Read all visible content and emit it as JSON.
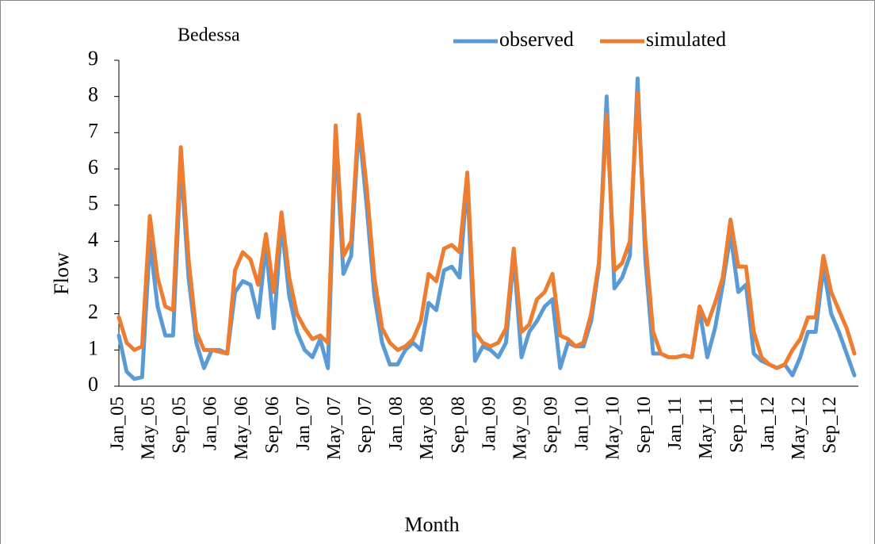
{
  "chart_data": {
    "type": "line",
    "title": "Bedessa",
    "x_label": "Month",
    "y_label": "Flow",
    "categories": [
      "Jan_05",
      null,
      null,
      null,
      "May_05",
      null,
      null,
      null,
      "Sep_05",
      null,
      null,
      null,
      "Jan_06",
      null,
      null,
      null,
      "May_06",
      null,
      null,
      null,
      "Sep_06",
      null,
      null,
      null,
      "Jan_07",
      null,
      null,
      null,
      "May_07",
      null,
      null,
      null,
      "Sep_07",
      null,
      null,
      null,
      "Jan_08",
      null,
      null,
      null,
      "May_08",
      null,
      null,
      null,
      "Sep_08",
      null,
      null,
      null,
      "Jan_09",
      null,
      null,
      null,
      "May_09",
      null,
      null,
      null,
      "Sep_09",
      null,
      null,
      null,
      "Jan_10",
      null,
      null,
      null,
      "May_10",
      null,
      null,
      null,
      "Sep_10",
      null,
      null,
      null,
      "Jan_11",
      null,
      null,
      null,
      "May_11",
      null,
      null,
      null,
      "Sep_11",
      null,
      null,
      null,
      "Jan_12",
      null,
      null,
      null,
      "May_12",
      null,
      null,
      null,
      "Sep_12",
      null,
      null,
      null
    ],
    "series": [
      {
        "name": "observed",
        "color": "#5b9bd5",
        "values": [
          1.4,
          0.4,
          0.2,
          0.25,
          4.0,
          2.2,
          1.4,
          1.4,
          6.2,
          3.0,
          1.2,
          0.5,
          1.0,
          1.0,
          0.9,
          2.6,
          2.9,
          2.8,
          1.9,
          3.9,
          1.6,
          4.5,
          2.5,
          1.5,
          1.0,
          0.8,
          1.3,
          0.5,
          6.9,
          3.1,
          3.6,
          7.2,
          5.0,
          2.5,
          1.2,
          0.6,
          0.6,
          1.0,
          1.2,
          1.0,
          2.3,
          2.1,
          3.2,
          3.3,
          3.0,
          5.7,
          0.7,
          1.1,
          1.0,
          0.8,
          1.2,
          3.6,
          0.8,
          1.5,
          1.8,
          2.2,
          2.4,
          0.5,
          1.2,
          1.1,
          1.1,
          1.8,
          3.3,
          8.0,
          2.7,
          3.0,
          3.6,
          8.5,
          3.5,
          0.9,
          0.9,
          0.8,
          0.8,
          0.85,
          0.8,
          2.1,
          0.8,
          1.6,
          2.8,
          4.2,
          2.6,
          2.8,
          0.9,
          0.7,
          0.6,
          0.5,
          0.6,
          0.3,
          0.8,
          1.5,
          1.5,
          3.3,
          2.0,
          1.5,
          0.9,
          0.3
        ]
      },
      {
        "name": "simulated",
        "color": "#ed7d31",
        "values": [
          1.9,
          1.2,
          1.0,
          1.1,
          4.7,
          3.0,
          2.2,
          2.1,
          6.6,
          3.5,
          1.5,
          1.0,
          1.0,
          0.95,
          0.9,
          3.2,
          3.7,
          3.5,
          2.8,
          4.2,
          2.6,
          4.8,
          3.0,
          2.0,
          1.6,
          1.3,
          1.4,
          1.2,
          7.2,
          3.6,
          4.0,
          7.5,
          5.5,
          3.0,
          1.6,
          1.2,
          1.0,
          1.1,
          1.3,
          1.8,
          3.1,
          2.9,
          3.8,
          3.9,
          3.7,
          5.9,
          1.5,
          1.2,
          1.1,
          1.2,
          1.6,
          3.8,
          1.5,
          1.7,
          2.4,
          2.6,
          3.1,
          1.4,
          1.3,
          1.1,
          1.2,
          2.0,
          3.4,
          7.5,
          3.2,
          3.4,
          4.0,
          8.1,
          4.0,
          1.5,
          0.9,
          0.8,
          0.8,
          0.85,
          0.8,
          2.2,
          1.7,
          2.3,
          3.0,
          4.6,
          3.3,
          3.3,
          1.5,
          0.8,
          0.6,
          0.5,
          0.6,
          1.0,
          1.3,
          1.9,
          1.9,
          3.6,
          2.6,
          2.1,
          1.6,
          0.9
        ]
      }
    ],
    "ylim": [
      0,
      9
    ],
    "yticks": [
      0,
      1,
      2,
      3,
      4,
      5,
      6,
      7,
      8,
      9
    ],
    "legend": "top"
  }
}
